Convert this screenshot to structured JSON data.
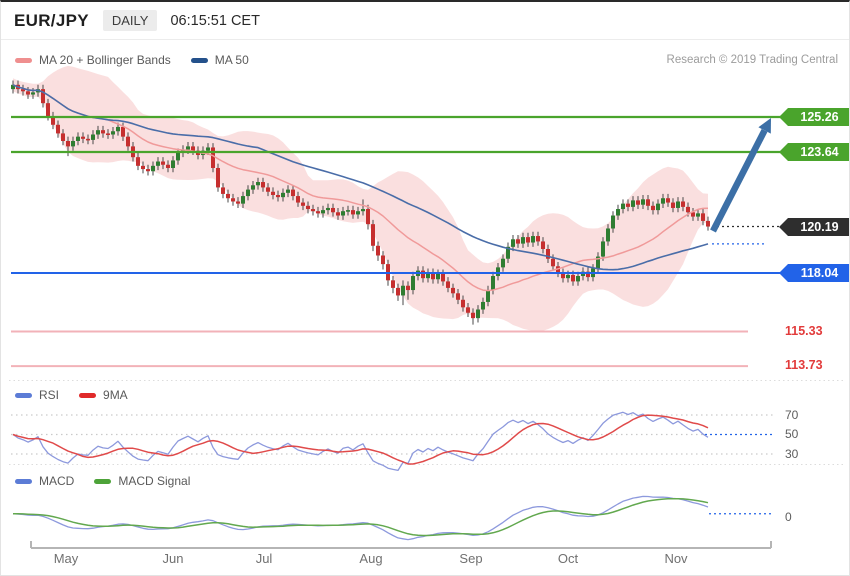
{
  "window": {
    "pair": "EUR/JPY",
    "timeframe": "DAILY",
    "timestamp": "06:15:51 CET"
  },
  "attribution": "Research © 2019 Trading Central",
  "legends": {
    "price": {
      "items": [
        {
          "label": "MA 20 + Bollinger Bands",
          "color": "#ef8f8f"
        },
        {
          "label": "MA 50",
          "color": "#24518b"
        }
      ]
    },
    "rsi": {
      "items": [
        {
          "label": "RSI",
          "color": "#5c7cd6"
        },
        {
          "label": "9MA",
          "color": "#e02a2a"
        }
      ]
    },
    "macd": {
      "items": [
        {
          "label": "MACD",
          "color": "#5c7cd6"
        },
        {
          "label": "MACD Signal",
          "color": "#4da339"
        }
      ]
    }
  },
  "chart_data": {
    "type": "candlestick",
    "title": "EUR/JPY daily candlesticks with MA20 + Bollinger Bands, MA50, RSI with 9MA, MACD with signal",
    "x_axis": {
      "tick_labels": [
        "May",
        "Jun",
        "Jul",
        "Aug",
        "Sep",
        "Oct",
        "Nov"
      ]
    },
    "price_levels": [
      {
        "label": "125.26",
        "value": 125.26,
        "role": "resistance-target",
        "style": "green-tag"
      },
      {
        "label": "123.64",
        "value": 123.64,
        "role": "resistance",
        "style": "green-tag"
      },
      {
        "label": "120.19",
        "value": 120.19,
        "role": "last-price",
        "style": "dark-tag"
      },
      {
        "label": "118.04",
        "value": 118.04,
        "role": "support",
        "style": "blue-tag"
      },
      {
        "label": "115.33",
        "value": 115.33,
        "role": "support",
        "style": "red-text"
      },
      {
        "label": "113.73",
        "value": 113.73,
        "role": "support",
        "style": "red-text"
      }
    ],
    "annotation_arrow": {
      "from_price": 120.3,
      "to_price": 125.26,
      "meaning": "bullish projection toward 125.26"
    },
    "rsi_panel": {
      "period": 14,
      "ma_period": 9,
      "levels": [
        "70",
        "50",
        "30"
      ],
      "ylim": [
        20,
        80
      ]
    },
    "macd_panel": {
      "fast": 12,
      "slow": 26,
      "signal": 9,
      "zero_label": "0"
    },
    "candles": [
      [
        126.55,
        126.95,
        126.35,
        126.75
      ],
      [
        126.75,
        126.95,
        126.35,
        126.55
      ],
      [
        126.55,
        126.75,
        126.25,
        126.45
      ],
      [
        126.45,
        126.65,
        126.1,
        126.3
      ],
      [
        126.3,
        126.6,
        126.1,
        126.4
      ],
      [
        126.4,
        126.75,
        126.2,
        126.55
      ],
      [
        126.55,
        126.75,
        125.7,
        125.9
      ],
      [
        125.9,
        126.1,
        125.1,
        125.3
      ],
      [
        125.3,
        125.5,
        124.7,
        124.9
      ],
      [
        124.9,
        125.1,
        124.3,
        124.5
      ],
      [
        124.5,
        124.7,
        123.95,
        124.15
      ],
      [
        124.15,
        124.35,
        123.45,
        123.9
      ],
      [
        123.9,
        124.35,
        123.7,
        124.15
      ],
      [
        124.15,
        124.55,
        123.95,
        124.35
      ],
      [
        124.35,
        124.55,
        124.05,
        124.25
      ],
      [
        124.25,
        124.45,
        124.0,
        124.2
      ],
      [
        124.2,
        124.65,
        124.0,
        124.45
      ],
      [
        124.45,
        124.85,
        124.25,
        124.65
      ],
      [
        124.65,
        124.85,
        124.3,
        124.5
      ],
      [
        124.5,
        124.7,
        124.25,
        124.45
      ],
      [
        124.45,
        124.8,
        124.25,
        124.6
      ],
      [
        124.6,
        125.0,
        124.4,
        124.8
      ],
      [
        124.8,
        125.0,
        124.15,
        124.35
      ],
      [
        124.35,
        124.55,
        123.7,
        123.9
      ],
      [
        123.9,
        124.1,
        123.2,
        123.4
      ],
      [
        123.4,
        123.6,
        122.8,
        123.0
      ],
      [
        123.0,
        123.2,
        122.65,
        122.85
      ],
      [
        122.85,
        123.05,
        122.55,
        122.75
      ],
      [
        122.75,
        123.2,
        122.55,
        123.0
      ],
      [
        123.0,
        123.4,
        122.8,
        123.2
      ],
      [
        123.2,
        123.4,
        122.85,
        123.05
      ],
      [
        123.05,
        123.25,
        122.7,
        122.9
      ],
      [
        122.9,
        123.45,
        122.7,
        123.25
      ],
      [
        123.25,
        123.8,
        123.05,
        123.6
      ],
      [
        123.6,
        123.95,
        123.4,
        123.75
      ],
      [
        123.75,
        124.1,
        123.55,
        123.9
      ],
      [
        123.9,
        124.1,
        123.5,
        123.7
      ],
      [
        123.7,
        123.9,
        123.3,
        123.5
      ],
      [
        123.5,
        123.9,
        123.3,
        123.7
      ],
      [
        123.7,
        124.05,
        123.5,
        123.85
      ],
      [
        123.85,
        124.05,
        122.7,
        122.9
      ],
      [
        122.9,
        123.1,
        121.8,
        122.0
      ],
      [
        122.0,
        122.2,
        121.5,
        121.7
      ],
      [
        121.7,
        121.9,
        121.3,
        121.5
      ],
      [
        121.5,
        121.7,
        121.15,
        121.35
      ],
      [
        121.35,
        121.55,
        121.05,
        121.25
      ],
      [
        121.25,
        121.8,
        121.05,
        121.6
      ],
      [
        121.6,
        122.1,
        121.4,
        121.9
      ],
      [
        121.9,
        122.3,
        121.7,
        122.1
      ],
      [
        122.1,
        122.45,
        121.9,
        122.25
      ],
      [
        122.25,
        122.45,
        121.8,
        122.0
      ],
      [
        122.0,
        122.2,
        121.6,
        121.8
      ],
      [
        121.8,
        122.0,
        121.45,
        121.65
      ],
      [
        121.65,
        121.85,
        121.35,
        121.55
      ],
      [
        121.55,
        121.95,
        121.35,
        121.75
      ],
      [
        121.75,
        122.1,
        121.55,
        121.9
      ],
      [
        121.9,
        122.1,
        121.4,
        121.6
      ],
      [
        121.6,
        121.8,
        121.1,
        121.3
      ],
      [
        121.3,
        121.5,
        120.95,
        121.15
      ],
      [
        121.15,
        121.35,
        120.8,
        121.0
      ],
      [
        121.0,
        121.2,
        120.7,
        120.9
      ],
      [
        120.9,
        121.1,
        120.6,
        120.8
      ],
      [
        120.8,
        121.15,
        120.6,
        120.95
      ],
      [
        120.95,
        121.25,
        120.75,
        121.05
      ],
      [
        121.05,
        121.25,
        120.65,
        120.85
      ],
      [
        120.85,
        121.05,
        120.5,
        120.7
      ],
      [
        120.7,
        121.1,
        120.5,
        120.9
      ],
      [
        120.9,
        121.15,
        120.7,
        120.95
      ],
      [
        120.95,
        121.15,
        120.55,
        120.75
      ],
      [
        120.75,
        121.1,
        120.55,
        120.9
      ],
      [
        120.9,
        121.45,
        120.7,
        121.0
      ],
      [
        121.0,
        121.2,
        120.05,
        120.3
      ],
      [
        120.3,
        120.5,
        119.05,
        119.3
      ],
      [
        119.3,
        119.5,
        118.6,
        118.85
      ],
      [
        118.85,
        119.05,
        118.2,
        118.45
      ],
      [
        118.45,
        118.65,
        117.45,
        117.7
      ],
      [
        117.7,
        117.9,
        117.1,
        117.35
      ],
      [
        117.35,
        117.55,
        116.75,
        117.0
      ],
      [
        117.0,
        117.7,
        116.55,
        117.45
      ],
      [
        117.45,
        117.65,
        116.8,
        117.25
      ],
      [
        117.25,
        118.1,
        117.05,
        117.9
      ],
      [
        117.9,
        118.35,
        117.7,
        118.15
      ],
      [
        118.15,
        118.35,
        117.6,
        117.8
      ],
      [
        117.8,
        118.25,
        117.6,
        118.05
      ],
      [
        118.05,
        118.25,
        117.55,
        117.75
      ],
      [
        117.75,
        118.2,
        117.55,
        118.0
      ],
      [
        118.0,
        118.2,
        117.45,
        117.65
      ],
      [
        117.65,
        117.85,
        117.15,
        117.35
      ],
      [
        117.35,
        117.55,
        116.9,
        117.1
      ],
      [
        117.1,
        117.3,
        116.6,
        116.8
      ],
      [
        116.8,
        117.0,
        116.25,
        116.45
      ],
      [
        116.45,
        116.65,
        116.0,
        116.2
      ],
      [
        116.2,
        116.4,
        115.65,
        115.95
      ],
      [
        115.95,
        116.55,
        115.75,
        116.35
      ],
      [
        116.35,
        116.9,
        116.15,
        116.7
      ],
      [
        116.7,
        117.45,
        116.5,
        117.25
      ],
      [
        117.25,
        118.1,
        117.05,
        117.9
      ],
      [
        117.9,
        118.5,
        117.7,
        118.3
      ],
      [
        118.3,
        118.9,
        118.1,
        118.7
      ],
      [
        118.7,
        119.45,
        118.5,
        119.25
      ],
      [
        119.25,
        119.8,
        119.05,
        119.6
      ],
      [
        119.6,
        119.8,
        119.2,
        119.4
      ],
      [
        119.4,
        119.9,
        119.2,
        119.7
      ],
      [
        119.7,
        119.9,
        119.25,
        119.45
      ],
      [
        119.45,
        119.95,
        119.25,
        119.75
      ],
      [
        119.75,
        119.95,
        119.3,
        119.5
      ],
      [
        119.5,
        119.7,
        118.95,
        119.15
      ],
      [
        119.15,
        119.35,
        118.5,
        118.7
      ],
      [
        118.7,
        118.9,
        118.15,
        118.35
      ],
      [
        118.35,
        118.55,
        117.85,
        118.05
      ],
      [
        118.05,
        118.25,
        117.6,
        117.8
      ],
      [
        117.8,
        118.15,
        117.6,
        117.95
      ],
      [
        117.95,
        118.15,
        117.45,
        117.65
      ],
      [
        117.65,
        118.1,
        117.45,
        117.9
      ],
      [
        117.9,
        118.3,
        117.7,
        118.1
      ],
      [
        118.1,
        118.3,
        117.65,
        117.85
      ],
      [
        117.85,
        118.45,
        117.65,
        118.25
      ],
      [
        118.25,
        119.0,
        118.05,
        118.8
      ],
      [
        118.8,
        119.7,
        118.6,
        119.5
      ],
      [
        119.5,
        120.3,
        119.3,
        120.1
      ],
      [
        120.1,
        120.9,
        119.9,
        120.7
      ],
      [
        120.7,
        121.2,
        120.5,
        121.0
      ],
      [
        121.0,
        121.45,
        120.8,
        121.25
      ],
      [
        121.25,
        121.45,
        120.9,
        121.1
      ],
      [
        121.1,
        121.6,
        120.9,
        121.4
      ],
      [
        121.4,
        121.6,
        121.0,
        121.2
      ],
      [
        121.2,
        121.65,
        121.0,
        121.45
      ],
      [
        121.45,
        121.65,
        120.95,
        121.15
      ],
      [
        121.15,
        121.35,
        120.75,
        120.95
      ],
      [
        120.95,
        121.45,
        120.75,
        121.25
      ],
      [
        121.25,
        121.7,
        121.05,
        121.5
      ],
      [
        121.5,
        121.7,
        121.1,
        121.3
      ],
      [
        121.3,
        121.5,
        120.85,
        121.05
      ],
      [
        121.05,
        121.55,
        120.85,
        121.35
      ],
      [
        121.35,
        121.55,
        120.9,
        121.1
      ],
      [
        121.1,
        121.3,
        120.65,
        120.85
      ],
      [
        120.85,
        121.05,
        120.45,
        120.65
      ],
      [
        120.65,
        121.0,
        120.45,
        120.8
      ],
      [
        120.8,
        121.0,
        120.25,
        120.45
      ],
      [
        120.45,
        120.65,
        120.0,
        120.19
      ]
    ],
    "colors": {
      "candle_up": "#2f7d32",
      "candle_down": "#c62f2f",
      "wick": "#4a4a4a",
      "ma20": "#f09a9a",
      "bollinger_fill": "rgba(238,150,150,0.30)",
      "ma50": "#4a6da8",
      "resistance": "#4aa42c",
      "support_blue": "#2263e8",
      "last": "#2e2e2e",
      "support_red_line": "#f2b2b8",
      "support_red_text": "#e23b3b",
      "rsi_line": "#8d99dd",
      "rsi_ma": "#e04a4a",
      "macd_line": "#8d99dd",
      "macd_signal": "#62a84e",
      "arrow": "#3c6fa6",
      "grid_dot": "#c9c9c9",
      "axis": "#b5b5b5"
    }
  }
}
